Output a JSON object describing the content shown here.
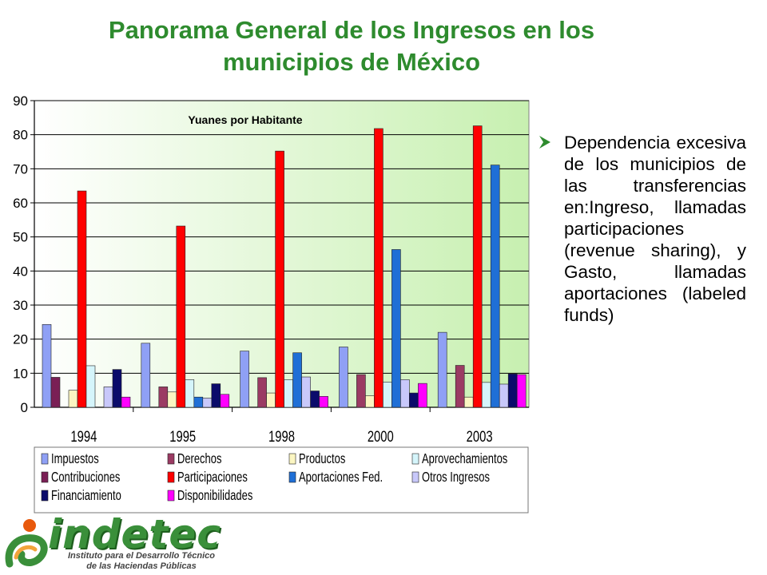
{
  "slide": {
    "title_line1": "Panorama General de los Ingresos en los",
    "title_line2": "municipios de México",
    "bullet_text": "Dependencia excesiva de los municipios de las transferencias en:Ingreso, llamadas participaciones (revenue sharing), y Gasto, llamadas aportaciones (labeled funds)"
  },
  "logo": {
    "name": "indetec",
    "subtitle_line1": "Instituto para el Desarrollo Técnico",
    "subtitle_line2": "de las Haciendas Públicas"
  },
  "chart_data": {
    "type": "bar",
    "title": "Yuanes por Habitante",
    "categories": [
      "1994",
      "1995",
      "1998",
      "2000",
      "2003"
    ],
    "ylim": [
      0,
      90
    ],
    "yticks": [
      "0",
      "10",
      "20",
      "30",
      "40",
      "50",
      "60",
      "70",
      "80",
      "90"
    ],
    "grid": true,
    "legend_position": "bottom",
    "series": [
      {
        "name": "Impuestos",
        "color": "#8fa0f5",
        "values": [
          24.3,
          18.8,
          16.5,
          17.7,
          22.0
        ]
      },
      {
        "name": "Contribuciones",
        "color": "#7a1f55",
        "values": [
          8.8,
          0,
          0,
          0,
          0
        ]
      },
      {
        "name": "Derechos",
        "color": "#9b3b63",
        "values": [
          0,
          6.0,
          8.7,
          9.6,
          12.3
        ]
      },
      {
        "name": "Productos",
        "color": "#fbf6c2",
        "values": [
          5.0,
          4.5,
          4.2,
          3.4,
          3.0
        ]
      },
      {
        "name": "Participaciones",
        "color": "#ff0000",
        "values": [
          63.5,
          53.2,
          75.2,
          81.8,
          82.6
        ]
      },
      {
        "name": "Aprovechamientos",
        "color": "#d5f5fb",
        "values": [
          12.2,
          8.1,
          8.1,
          7.4,
          7.3
        ]
      },
      {
        "name": "Aportaciones Fed.",
        "color": "#1f6fd6",
        "values": [
          0,
          3.0,
          16.0,
          46.3,
          71.1
        ]
      },
      {
        "name": "Otros Ingresos",
        "color": "#c8c8fa",
        "values": [
          6.0,
          2.7,
          8.9,
          8.1,
          6.8
        ]
      },
      {
        "name": "Financiamiento",
        "color": "#0b0b6b",
        "values": [
          11.1,
          6.9,
          4.8,
          4.2,
          9.8
        ]
      },
      {
        "name": "Disponibilidades",
        "color": "#ff00ff",
        "values": [
          3.0,
          3.8,
          3.2,
          7.0,
          9.6
        ]
      }
    ],
    "legend_order": [
      "Impuestos",
      "Derechos",
      "Productos",
      "Aprovechamientos",
      "Contribuciones",
      "Participaciones",
      "Aportaciones Fed.",
      "Otros Ingresos",
      "Financiamiento",
      "Disponibilidades"
    ]
  }
}
